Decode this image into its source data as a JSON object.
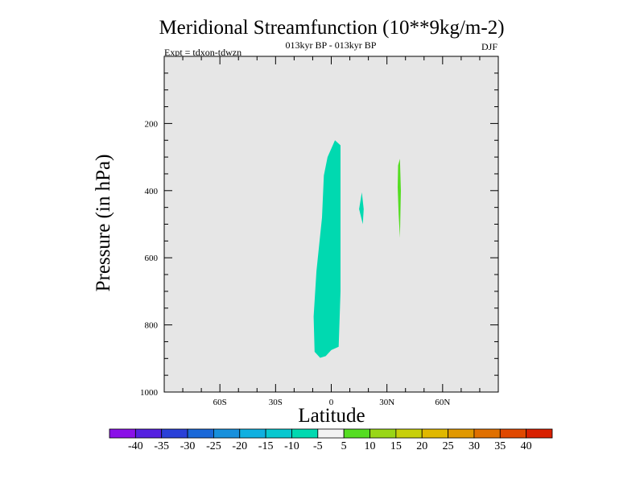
{
  "chart_data": {
    "type": "contour",
    "title": "Meridional Streamfunction (10**9kg/m-2)",
    "subtitle_center": "013kyr BP - 013kyr BP",
    "subtitle_left": "Expt = tdxon-tdwzn",
    "subtitle_right": "DJF",
    "xlabel": "Latitude",
    "ylabel": "Pressure (in hPa)",
    "xlim": [
      -90,
      90
    ],
    "ylim": [
      1000,
      0
    ],
    "x_ticks": [
      {
        "value": -60,
        "label": "60S"
      },
      {
        "value": -30,
        "label": "30S"
      },
      {
        "value": 0,
        "label": "0"
      },
      {
        "value": 30,
        "label": "30N"
      },
      {
        "value": 60,
        "label": "60N"
      }
    ],
    "y_ticks": [
      {
        "value": 200,
        "label": "200"
      },
      {
        "value": 400,
        "label": "400"
      },
      {
        "value": 600,
        "label": "600"
      },
      {
        "value": 800,
        "label": "800"
      },
      {
        "value": 1000,
        "label": "1000"
      }
    ],
    "background_color": "#e6e6e6",
    "regions": [
      {
        "level": "-10 to -5",
        "color": "#00d9b0",
        "points": [
          [
            -4,
            355
          ],
          [
            -2,
            300
          ],
          [
            2,
            250
          ],
          [
            5,
            265
          ],
          [
            5,
            450
          ],
          [
            5,
            700
          ],
          [
            4,
            865
          ],
          [
            0,
            875
          ],
          [
            -3,
            893
          ],
          [
            -6,
            898
          ],
          [
            -9,
            880
          ],
          [
            -9.5,
            775
          ],
          [
            -8,
            640
          ],
          [
            -5,
            480
          ]
        ]
      },
      {
        "level": "-10 to -5",
        "color": "#00d9b0",
        "points": [
          [
            15,
            455
          ],
          [
            16.5,
            405
          ],
          [
            17.5,
            455
          ],
          [
            17,
            500
          ]
        ]
      },
      {
        "level": "5 to 10",
        "color": "#55dd22",
        "points": [
          [
            36,
            325
          ],
          [
            37,
            305
          ],
          [
            37.5,
            400
          ],
          [
            37,
            540
          ],
          [
            36.3,
            470
          ],
          [
            35.8,
            390
          ]
        ]
      }
    ],
    "colorbar": {
      "boundaries": [
        "-40",
        "-35",
        "-30",
        "-25",
        "-20",
        "-15",
        "-10",
        "-5",
        "5",
        "10",
        "15",
        "20",
        "25",
        "30",
        "35",
        "40"
      ],
      "colors": [
        "#8a10e8",
        "#5520e0",
        "#2a40d8",
        "#1a68d8",
        "#1890dc",
        "#10b0e0",
        "#08c8d0",
        "#00d9b0",
        "#f2f2f2",
        "#55dd22",
        "#99d616",
        "#c8d00a",
        "#e0b800",
        "#e09800",
        "#e07000",
        "#e04800",
        "#d82000"
      ]
    }
  }
}
